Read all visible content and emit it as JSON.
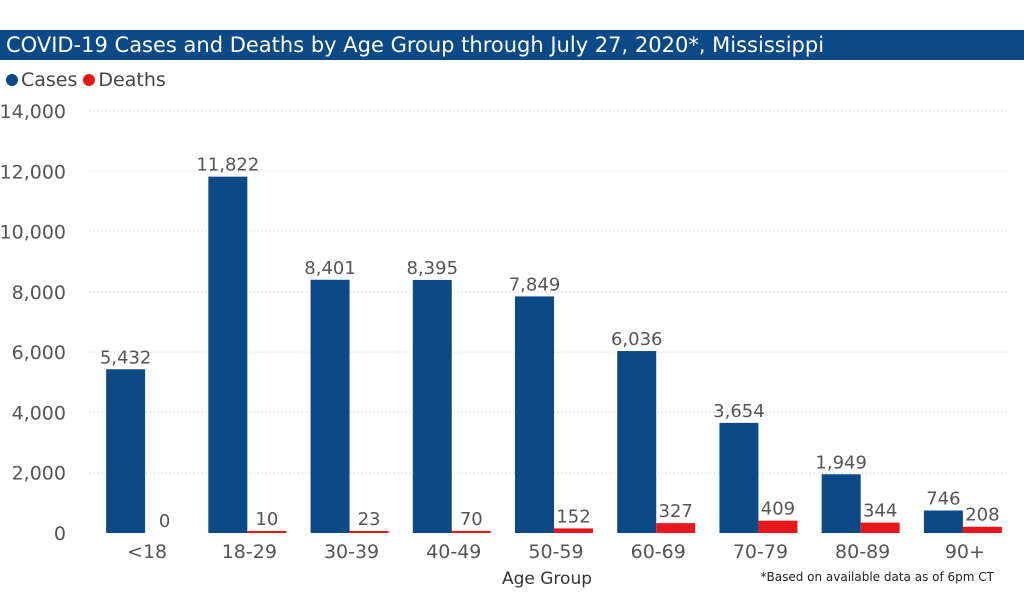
{
  "title": "COVID-19 Cases and Deaths by Age Group through July 27, 2020*, Mississippi",
  "footnote": "*Based on available data as of 6pm CT",
  "colors": {
    "cases": "#0b4a86",
    "deaths": "#e8161b",
    "title_bg": "#0b4a86"
  },
  "chart_data": {
    "type": "bar",
    "title": "COVID-19 Cases and Deaths by Age Group through July 27, 2020*, Mississippi",
    "xlabel": "Age Group",
    "ylabel": "",
    "ylim": [
      0,
      14000
    ],
    "yticks": [
      "0",
      "2,000",
      "4,000",
      "6,000",
      "8,000",
      "10,000",
      "12,000",
      "14,000"
    ],
    "ytick_values": [
      0,
      2000,
      4000,
      6000,
      8000,
      10000,
      12000,
      14000
    ],
    "grid": true,
    "legend_position": "top-left",
    "categories": [
      "<18",
      "18-29",
      "30-39",
      "40-49",
      "50-59",
      "60-69",
      "70-79",
      "80-89",
      "90+"
    ],
    "series": [
      {
        "name": "Cases",
        "values": [
          5432,
          11822,
          8401,
          8395,
          7849,
          6036,
          3654,
          1949,
          746
        ],
        "labels": [
          "5,432",
          "11,822",
          "8,401",
          "8,395",
          "7,849",
          "6,036",
          "3,654",
          "1,949",
          "746"
        ]
      },
      {
        "name": "Deaths",
        "values": [
          0,
          10,
          23,
          70,
          152,
          327,
          409,
          344,
          208
        ],
        "labels": [
          "0",
          "10",
          "23",
          "70",
          "152",
          "327",
          "409",
          "344",
          "208"
        ]
      }
    ]
  }
}
